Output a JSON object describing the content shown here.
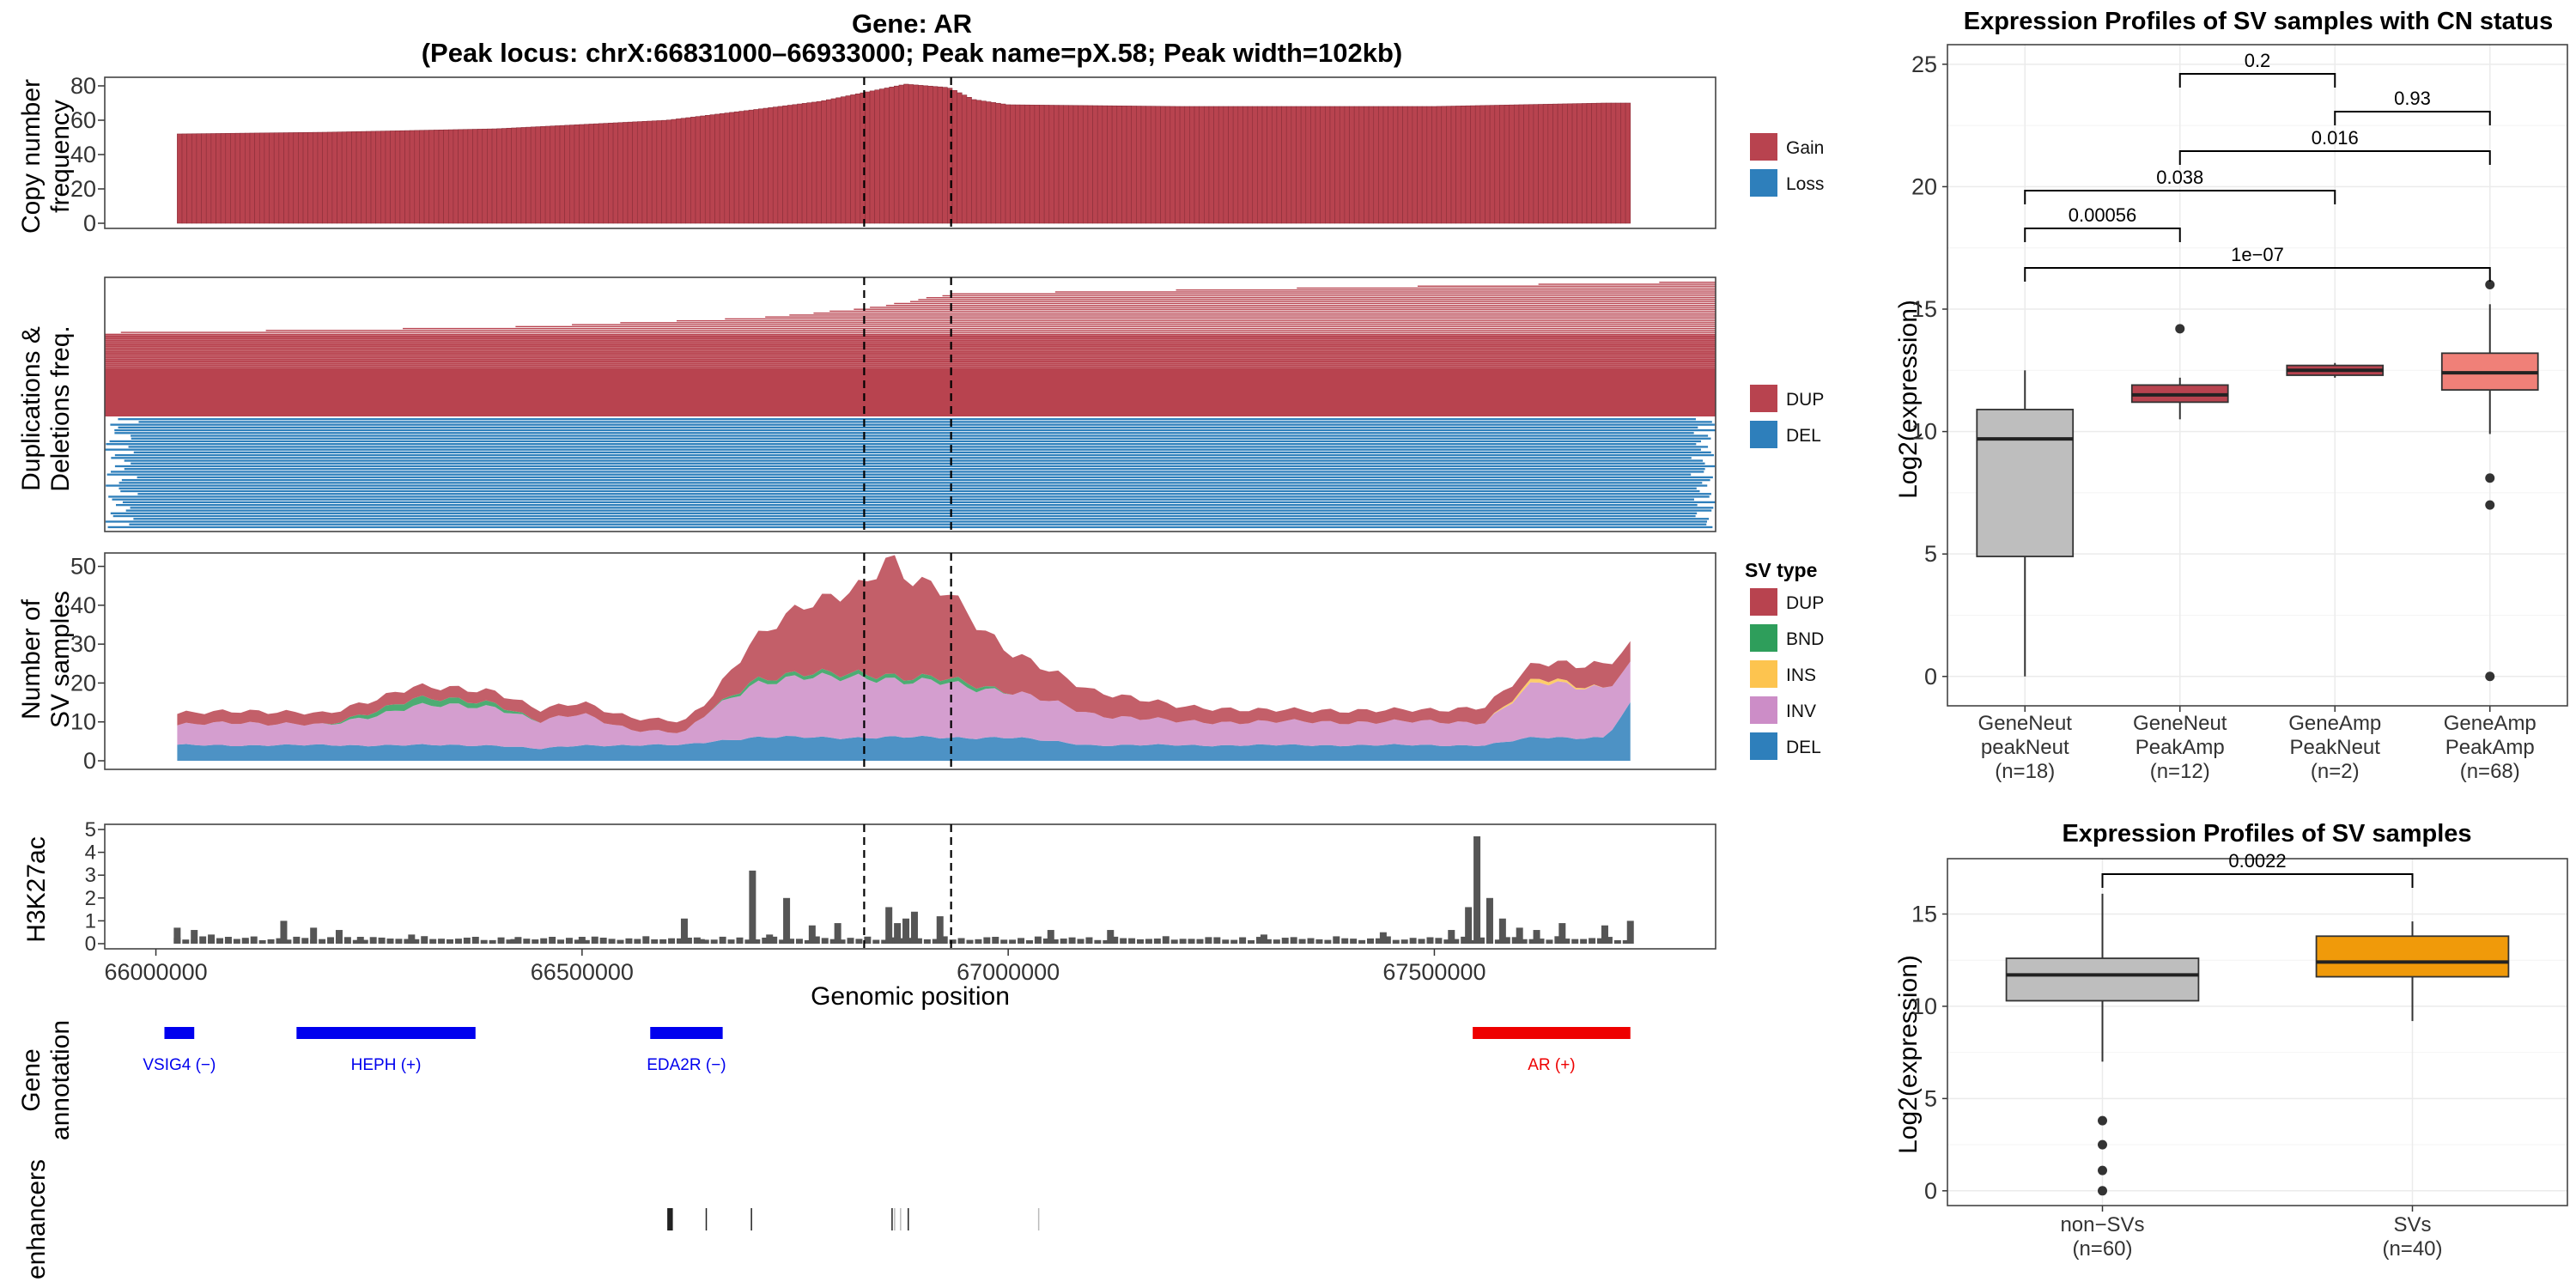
{
  "figure": {
    "title_line1": "Gene: AR",
    "title_line2": "(Peak locus: chrX:66831000–66933000; Peak name=pX.58; Peak width=102kb)",
    "xlabel": "Genomic position",
    "xticks": [
      "66000000",
      "66500000",
      "67000000",
      "67500000"
    ],
    "xlim": [
      65940000,
      67830000
    ],
    "peak_start": 66831000,
    "peak_end": 66933000
  },
  "colors": {
    "gain": "#B8434F",
    "loss": "#2E7FBB",
    "dup": "#B8434F",
    "del": "#2E7FBB",
    "bnd": "#2E9E5B",
    "ins": "#FDC44F",
    "inv": "#CC8DC7",
    "h3k27ac": "#555555",
    "gene_minus": "#0000EE",
    "gene_plus": "#EE0000",
    "gray_box": "#BEBEBE",
    "amp_neut_box": "#B8434F",
    "amp_amp_box": "#F08078",
    "sv_box": "#F09A0A"
  },
  "tracks": {
    "cn": {
      "ylabel_line1": "Copy number",
      "ylabel_line2": "frequency",
      "yticks": [
        "0",
        "20",
        "40",
        "60",
        "80"
      ],
      "legend": [
        "Gain",
        "Loss"
      ]
    },
    "dupdel": {
      "ylabel_line1": "Duplications &",
      "ylabel_line2": "Deletions freq.",
      "legend": [
        "DUP",
        "DEL"
      ]
    },
    "svcount": {
      "ylabel_line1": "Number of",
      "ylabel_line2": "SV samples",
      "yticks": [
        "0",
        "10",
        "20",
        "30",
        "40",
        "50"
      ],
      "legend_title": "SV type",
      "legend": [
        "DUP",
        "BND",
        "INS",
        "INV",
        "DEL"
      ]
    },
    "h3k27ac": {
      "ylabel": "H3K27ac",
      "yticks": [
        "0",
        "1",
        "2",
        "3",
        "4",
        "5"
      ]
    },
    "genes": {
      "ylabel_line1": "Gene",
      "ylabel_line2": "annotation",
      "items": [
        {
          "name": "VSIG4 (−)",
          "start": 66010000,
          "end": 66045000,
          "strand": "-"
        },
        {
          "name": "HEPH (+)",
          "start": 66165000,
          "end": 66375000,
          "strand": "+"
        },
        {
          "name": "EDA2R (−)",
          "start": 66580000,
          "end": 66665000,
          "strand": "-"
        },
        {
          "name": "AR (+)",
          "start": 67545000,
          "end": 67730000,
          "strand": "+"
        }
      ]
    },
    "enhancers": {
      "ylabel": "enhancers",
      "positions": [
        66600000,
        66603000,
        66645000,
        66698000,
        66863000,
        66866000,
        66873000,
        66882000,
        67035000
      ]
    }
  },
  "chart_data": [
    {
      "type": "bar",
      "title": "Copy number frequency",
      "ylabel": "Copy number frequency",
      "ylim": [
        0,
        85
      ],
      "series": [
        {
          "name": "Gain",
          "x": [
            66025000,
            66200000,
            66400000,
            66600000,
            66700000,
            66780000,
            66830000,
            66880000,
            66930000,
            66960000,
            67000000,
            67200000,
            67500000,
            67700000,
            67730000
          ],
          "values": [
            52,
            53,
            55,
            60,
            66,
            71,
            76,
            81,
            79,
            72,
            69,
            68,
            68,
            70,
            70
          ]
        }
      ],
      "legend": [
        "Gain",
        "Loss"
      ]
    },
    {
      "type": "area",
      "title": "Duplications & Deletions freq.",
      "series": [
        {
          "name": "DUP",
          "x": [
            65940000,
            66400000,
            66700000,
            66830000,
            66933000,
            67830000
          ],
          "values": [
            0.62,
            0.66,
            0.73,
            0.8,
            0.91,
            1.0
          ]
        },
        {
          "name": "DEL",
          "x": [
            65940000,
            67830000
          ],
          "values": [
            0.45,
            0.45
          ]
        }
      ]
    },
    {
      "type": "area",
      "title": "Number of SV samples",
      "xlabel": "Genomic position",
      "ylim": [
        0,
        53
      ],
      "x": [
        66025000,
        66100000,
        66200000,
        66300000,
        66400000,
        66450000,
        66500000,
        66560000,
        66620000,
        66650000,
        66700000,
        66760000,
        66830000,
        66860000,
        66880000,
        66930000,
        66960000,
        67000000,
        67100000,
        67200000,
        67300000,
        67400000,
        67500000,
        67560000,
        67620000,
        67700000,
        67730000
      ],
      "series": [
        {
          "name": "DEL",
          "values": [
            4,
            4,
            4,
            4,
            4,
            3,
            4,
            4,
            4,
            5,
            6,
            6,
            6,
            6,
            6,
            6,
            6,
            6,
            4,
            4,
            4,
            4,
            4,
            4,
            6,
            6,
            14
          ]
        },
        {
          "name": "INV",
          "values": [
            5,
            6,
            5,
            10,
            10,
            7,
            8,
            4,
            3,
            8,
            14,
            15,
            16,
            15,
            14,
            14,
            13,
            12,
            8,
            6,
            6,
            6,
            6,
            6,
            14,
            13,
            10
          ]
        },
        {
          "name": "INS",
          "values": [
            0,
            0,
            0,
            0,
            0,
            0,
            0,
            0,
            0,
            0,
            0,
            0,
            0,
            0,
            0,
            0,
            0,
            0,
            0,
            0,
            0,
            0,
            0,
            0,
            1,
            0,
            0
          ]
        },
        {
          "name": "BND",
          "values": [
            0,
            0,
            0,
            2,
            1,
            0,
            0,
            0,
            0,
            0,
            1,
            1,
            1,
            1,
            1,
            1,
            1,
            0,
            0,
            0,
            0,
            0,
            0,
            0,
            0,
            0,
            0
          ]
        },
        {
          "name": "DUP",
          "values": [
            3,
            3,
            3,
            3,
            3,
            3,
            3,
            3,
            3,
            3,
            10,
            18,
            22,
            30,
            26,
            23,
            16,
            10,
            6,
            4,
            3,
            3,
            3,
            4,
            4,
            6,
            5
          ]
        }
      ]
    },
    {
      "type": "bar",
      "title": "H3K27ac",
      "ylabel": "H3K27ac",
      "ylim": [
        0,
        5
      ],
      "x": [
        66025000,
        66045000,
        66065000,
        66085000,
        66105000,
        66150000,
        66185000,
        66215000,
        66240000,
        66300000,
        66420000,
        66500000,
        66620000,
        66640000,
        66700000,
        66720000,
        66740000,
        66770000,
        66800000,
        66860000,
        66870000,
        66880000,
        66890000,
        66920000,
        67050000,
        67120000,
        67300000,
        67440000,
        67520000,
        67540000,
        67550000,
        67565000,
        67580000,
        67600000,
        67620000,
        67650000,
        67700000,
        67730000
      ],
      "values": [
        0.7,
        0.6,
        0.4,
        0.3,
        0.2,
        1.0,
        0.7,
        0.6,
        0.3,
        0.4,
        0.2,
        0.3,
        1.1,
        0.2,
        3.2,
        0.4,
        2.0,
        0.8,
        0.9,
        1.6,
        0.9,
        1.1,
        1.4,
        1.2,
        0.6,
        0.6,
        0.4,
        0.5,
        0.6,
        1.6,
        4.7,
        2.0,
        1.1,
        0.7,
        0.6,
        0.9,
        0.8,
        1.0
      ]
    },
    {
      "type": "box",
      "title": "Expression Profiles of SV samples with CN status",
      "ylabel": "Log2(expression)",
      "ylim": [
        -1.2,
        25.8
      ],
      "yticks": [
        "0",
        "5",
        "10",
        "15",
        "20",
        "25"
      ],
      "categories": [
        "GeneNeut\npeakNeut\n(n=18)",
        "GeneNeut\nPeakAmp\n(n=12)",
        "GeneAmp\nPeakNeut\n(n=2)",
        "GeneAmp\nPeakAmp\n(n=68)"
      ],
      "boxes": [
        {
          "min": 0.0,
          "q1": 4.9,
          "median": 9.7,
          "q3": 10.9,
          "max": 12.5,
          "outliers": []
        },
        {
          "min": 10.5,
          "q1": 11.2,
          "median": 11.5,
          "q3": 11.9,
          "max": 12.2,
          "outliers": [
            14.2
          ]
        },
        {
          "min": 12.2,
          "q1": 12.3,
          "median": 12.5,
          "q3": 12.7,
          "max": 12.8,
          "outliers": []
        },
        {
          "min": 9.9,
          "q1": 11.7,
          "median": 12.4,
          "q3": 13.2,
          "max": 15.2,
          "outliers": [
            16.0,
            8.1,
            7.0,
            0.0
          ]
        }
      ],
      "comparisons": [
        {
          "a": 1,
          "b": 2,
          "p": "0.2"
        },
        {
          "a": 2,
          "b": 3,
          "p": "0.93"
        },
        {
          "a": 1,
          "b": 3,
          "p": "0.016"
        },
        {
          "a": 0,
          "b": 2,
          "p": "0.038"
        },
        {
          "a": 0,
          "b": 1,
          "p": "0.00056"
        },
        {
          "a": 0,
          "b": 3,
          "p": "1e−07"
        }
      ]
    },
    {
      "type": "box",
      "title": "Expression Profiles of SV samples",
      "ylabel": "Log2(expression)",
      "ylim": [
        -0.8,
        18.0
      ],
      "yticks": [
        "0",
        "5",
        "10",
        "15"
      ],
      "categories": [
        "non−SVs\n(n=60)",
        "SVs\n(n=40)"
      ],
      "boxes": [
        {
          "min": 7.0,
          "q1": 10.3,
          "median": 11.7,
          "q3": 12.6,
          "max": 16.1,
          "outliers": [
            3.8,
            2.5,
            1.1,
            0.0
          ]
        },
        {
          "min": 9.2,
          "q1": 11.6,
          "median": 12.4,
          "q3": 13.8,
          "max": 14.6,
          "outliers": []
        }
      ],
      "comparisons": [
        {
          "a": 0,
          "b": 1,
          "p": "0.0022"
        }
      ]
    }
  ]
}
